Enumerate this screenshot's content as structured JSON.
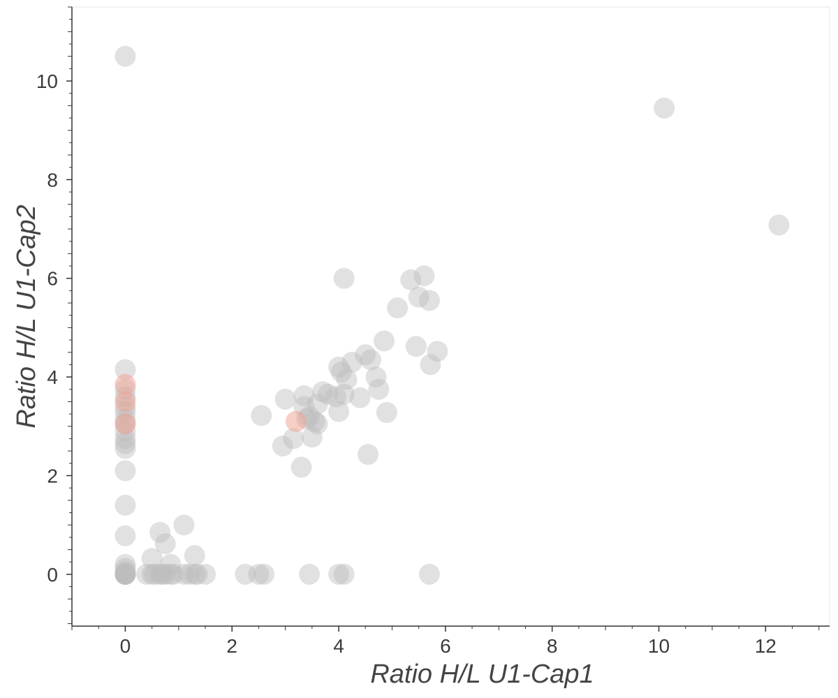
{
  "chart_data": {
    "type": "scatter",
    "title": "",
    "xlabel": "Ratio H/L U1-Cap1",
    "ylabel": "Ratio H/L U1-Cap2",
    "xlim": [
      -1.0,
      13.2
    ],
    "ylim": [
      -1.05,
      11.5
    ],
    "xticks": [
      0,
      2,
      4,
      6,
      8,
      10,
      12
    ],
    "yticks": [
      0,
      2,
      4,
      6,
      8,
      10
    ],
    "grid": false,
    "legend": "none",
    "colors": {
      "gray": "#bdbdbd",
      "highlight": "#f0a08f",
      "axis": "#333333"
    },
    "series": [
      {
        "color": "#bdbdbd",
        "x": [
          0,
          0,
          0,
          0,
          0,
          0,
          0,
          0,
          0,
          0,
          0,
          0,
          0,
          0,
          0,
          0,
          0,
          0,
          0,
          0,
          0,
          0,
          0,
          0,
          0.4,
          0.5,
          0.55,
          0.65,
          0.7,
          0.75,
          0.85,
          0.9,
          1.1,
          1.2,
          1.3,
          1.35,
          1.5,
          2.25,
          2.5,
          2.6,
          3.45,
          4.0,
          4.1,
          5.7,
          0.5,
          0.65,
          0.75,
          1.1,
          1.3,
          0.85,
          2.55,
          2.95,
          3.0,
          3.15,
          3.3,
          3.35,
          3.35,
          3.4,
          3.45,
          3.5,
          3.55,
          3.6,
          3.6,
          3.7,
          3.8,
          3.95,
          4.0,
          4.0,
          4.05,
          4.1,
          4.1,
          4.15,
          4.25,
          4.4,
          4.5,
          4.55,
          4.6,
          4.7,
          4.75,
          4.85,
          4.9,
          5.1,
          5.35,
          5.45,
          5.5,
          5.6,
          5.7,
          5.72,
          5.85,
          10.1,
          12.25
        ],
        "y": [
          10.5,
          4.15,
          3.75,
          3.6,
          3.4,
          3.3,
          3.15,
          3.05,
          2.9,
          2.75,
          2.65,
          2.55,
          2.1,
          1.4,
          0.78,
          0.2,
          0.12,
          0.05,
          0,
          0,
          0,
          0,
          0,
          0,
          0,
          0,
          0,
          0,
          0,
          0,
          0,
          0,
          0,
          0,
          0,
          0,
          0,
          0,
          0,
          0,
          0,
          0,
          0,
          0,
          0.32,
          0.85,
          0.62,
          1.0,
          0.38,
          0.2,
          3.22,
          2.6,
          3.55,
          2.75,
          2.17,
          3.62,
          3.4,
          3.15,
          3.2,
          2.78,
          3.1,
          3.05,
          3.45,
          3.7,
          3.65,
          3.6,
          3.3,
          4.2,
          4.1,
          6.0,
          3.65,
          3.95,
          4.3,
          3.58,
          4.45,
          2.43,
          4.35,
          4.0,
          3.75,
          4.73,
          3.28,
          5.4,
          5.97,
          4.62,
          5.62,
          6.05,
          5.55,
          4.25,
          4.52,
          9.45,
          7.08
        ]
      },
      {
        "color": "#f0a08f",
        "x": [
          0,
          0,
          0,
          3.2
        ],
        "y": [
          3.85,
          3.5,
          3.05,
          3.1
        ]
      }
    ]
  }
}
